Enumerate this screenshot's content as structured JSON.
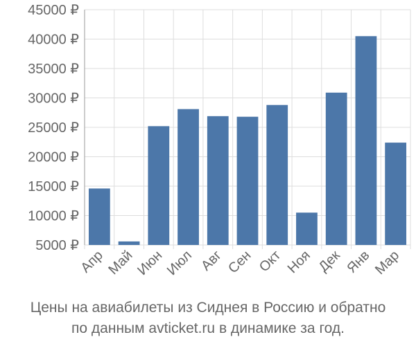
{
  "chart_data": {
    "type": "bar",
    "categories": [
      "Апр",
      "Май",
      "Июн",
      "Июл",
      "Авг",
      "Сен",
      "Окт",
      "Ноя",
      "Дек",
      "Янв",
      "Мар"
    ],
    "values": [
      14600,
      5600,
      25200,
      28100,
      26900,
      26800,
      28800,
      10500,
      30900,
      40500,
      22400
    ],
    "yticks": [
      5000,
      10000,
      15000,
      20000,
      25000,
      30000,
      35000,
      40000,
      45000
    ],
    "ytick_suffix": " ₽",
    "ylim": [
      5000,
      45000
    ],
    "bar_color": "#4c77a9",
    "grid": true,
    "title": "",
    "xlabel": "",
    "ylabel": ""
  },
  "caption": {
    "line1": "Цены на авиабилеты из Сиднея в Россию и обратно",
    "line2": "по данным avticket.ru в динамике за год."
  }
}
